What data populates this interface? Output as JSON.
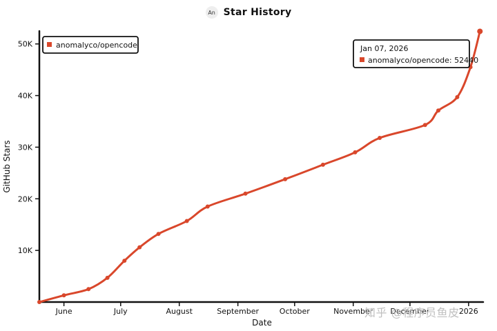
{
  "header": {
    "avatar_text": "An",
    "title": "Star History"
  },
  "watermark": "知乎 @程序员鱼皮",
  "colors": {
    "series": "#d9472b",
    "axis": "#111111"
  },
  "chart_data": {
    "type": "line",
    "title": "Star History",
    "xlabel": "Date",
    "ylabel": "GitHub Stars",
    "x_ticks": [
      "June",
      "July",
      "August",
      "September",
      "October",
      "November",
      "December",
      "2026"
    ],
    "x_tick_dates": [
      "2025-06-01",
      "2025-07-01",
      "2025-08-01",
      "2025-09-01",
      "2025-10-01",
      "2025-11-01",
      "2025-12-01",
      "2026-01-01"
    ],
    "y_ticks": [
      "10K",
      "20K",
      "30K",
      "40K",
      "50K"
    ],
    "y_tick_values": [
      10000,
      20000,
      30000,
      40000,
      50000
    ],
    "xlim": [
      "2025-05-19",
      "2026-01-08"
    ],
    "ylim": [
      0,
      52500
    ],
    "legend": {
      "position": "top-left",
      "entries": [
        "anomalyco/opencode"
      ]
    },
    "series": [
      {
        "name": "anomalyco/opencode",
        "points": [
          [
            "2025-05-19",
            0
          ],
          [
            "2025-06-01",
            1300
          ],
          [
            "2025-06-14",
            2500
          ],
          [
            "2025-06-24",
            4700
          ],
          [
            "2025-07-03",
            8000
          ],
          [
            "2025-07-11",
            10600
          ],
          [
            "2025-07-21",
            13200
          ],
          [
            "2025-08-05",
            15700
          ],
          [
            "2025-08-16",
            18500
          ],
          [
            "2025-09-05",
            21000
          ],
          [
            "2025-09-26",
            23800
          ],
          [
            "2025-10-16",
            26600
          ],
          [
            "2025-11-02",
            29000
          ],
          [
            "2025-11-15",
            31800
          ],
          [
            "2025-12-09",
            34300
          ],
          [
            "2025-12-16",
            37100
          ],
          [
            "2025-12-26",
            39700
          ],
          [
            "2026-01-02",
            45500
          ],
          [
            "2026-01-07",
            52440
          ]
        ]
      }
    ],
    "tooltip": {
      "date": "Jan 07, 2026",
      "series": "anomalyco/opencode",
      "value": "52440"
    }
  }
}
